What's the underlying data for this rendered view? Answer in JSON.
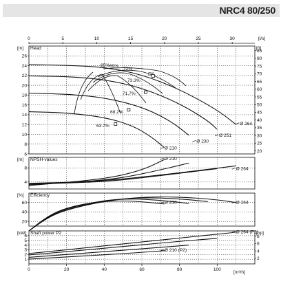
{
  "title": "NRC4 80/250",
  "top_axis": {
    "unit": "[l/s]",
    "ticks": [
      0,
      5,
      10,
      15,
      20,
      25,
      30
    ]
  },
  "bottom_axis": {
    "unit": "[m³/h]",
    "ticks": [
      0,
      20,
      40,
      60,
      80,
      100
    ]
  },
  "chart_data": [
    {
      "type": "line",
      "title": "Head",
      "ylabel": "[m]",
      "ylabel_right": "[ft]",
      "xlim": [
        0,
        120
      ],
      "ylim": [
        6,
        28
      ],
      "yticks": [
        6,
        8,
        10,
        12,
        14,
        16,
        18,
        20,
        22,
        24,
        26
      ],
      "yticks_right": [
        20,
        25,
        30,
        35,
        40,
        45,
        50,
        55,
        60,
        65,
        70,
        75,
        80,
        85
      ],
      "series": [
        {
          "name": "Ø 264",
          "points": [
            [
              0,
              24.2
            ],
            [
              20,
              24.1
            ],
            [
              40,
              23.7
            ],
            [
              60,
              22.2
            ],
            [
              80,
              19.2
            ],
            [
              100,
              15.0
            ],
            [
              110,
              12.0
            ]
          ]
        },
        {
          "name": "Ø 251",
          "points": [
            [
              0,
              21.9
            ],
            [
              20,
              21.8
            ],
            [
              40,
              21.2
            ],
            [
              60,
              19.5
            ],
            [
              80,
              16.3
            ],
            [
              95,
              12.8
            ],
            [
              100,
              11.0
            ]
          ]
        },
        {
          "name": "Ø 230",
          "points": [
            [
              0,
              18.4
            ],
            [
              20,
              18.2
            ],
            [
              40,
              17.5
            ],
            [
              60,
              15.6
            ],
            [
              75,
              12.8
            ],
            [
              85,
              9.8
            ]
          ]
        },
        {
          "name": "Ø 210",
          "points": [
            [
              0,
              14.6
            ],
            [
              20,
              14.4
            ],
            [
              40,
              13.5
            ],
            [
              55,
              11.8
            ],
            [
              65,
              9.5
            ],
            [
              72,
              7.3
            ]
          ]
        }
      ],
      "series_labels": [
        "Ø 264",
        "Ø 251",
        "Ø 230",
        "Ø 210"
      ],
      "efficiency_labels": [
        "65%",
        "69%",
        "72%",
        "73.3%",
        "Eff.",
        "71.7%",
        "68.2%",
        "63.7%"
      ],
      "best_efficiency_points": [
        [
          66,
          21.9
        ],
        [
          62,
          18.6
        ],
        [
          53,
          15.0
        ],
        [
          46,
          12.1
        ]
      ]
    },
    {
      "type": "line",
      "title": "NPSH-values",
      "ylabel": "[m]",
      "ylim": [
        2,
        11
      ],
      "yticks": [
        4,
        8
      ],
      "series": [
        {
          "name": "Ø 264",
          "points": [
            [
              0,
              3.6
            ],
            [
              40,
              4.2
            ],
            [
              80,
              6.6
            ],
            [
              110,
              8.6
            ]
          ]
        },
        {
          "name": "Ø 251",
          "points": [
            [
              0,
              3.4
            ],
            [
              40,
              4.0
            ],
            [
              70,
              5.8
            ],
            [
              100,
              7.8
            ]
          ]
        },
        {
          "name": "Ø 230",
          "points": [
            [
              0,
              3.2
            ],
            [
              40,
              4.4
            ],
            [
              60,
              6.2
            ],
            [
              85,
              9.4
            ]
          ]
        },
        {
          "name": "Ø 210",
          "points": [
            [
              0,
              3.0
            ],
            [
              40,
              4.8
            ],
            [
              60,
              7.3
            ],
            [
              72,
              10.4
            ]
          ]
        }
      ],
      "series_labels": [
        "Ø 210",
        "Ø 264"
      ]
    },
    {
      "type": "line",
      "title": "Efficiency",
      "ylabel": "[%]",
      "ylim": [
        10,
        80
      ],
      "yticks": [
        20,
        40,
        60
      ],
      "series": [
        {
          "name": "Ø 264",
          "points": [
            [
              0,
              0
            ],
            [
              10,
              28
            ],
            [
              20,
              45
            ],
            [
              40,
              63
            ],
            [
              60,
              72
            ],
            [
              80,
              72
            ],
            [
              100,
              66
            ],
            [
              110,
              60
            ]
          ]
        },
        {
          "name": "Ø 251",
          "points": [
            [
              0,
              0
            ],
            [
              10,
              29
            ],
            [
              20,
              46
            ],
            [
              40,
              64
            ],
            [
              60,
              71
            ],
            [
              80,
              68
            ],
            [
              95,
              62
            ]
          ]
        },
        {
          "name": "Ø 230",
          "points": [
            [
              0,
              0
            ],
            [
              10,
              30
            ],
            [
              20,
              48
            ],
            [
              40,
              65
            ],
            [
              55,
              68
            ],
            [
              70,
              65
            ],
            [
              85,
              58
            ]
          ]
        },
        {
          "name": "Ø 210",
          "points": [
            [
              0,
              0
            ],
            [
              10,
              31
            ],
            [
              20,
              49
            ],
            [
              35,
              61
            ],
            [
              50,
              64
            ],
            [
              62,
              61
            ],
            [
              72,
              57
            ]
          ]
        }
      ],
      "series_labels": [
        "Ø 210",
        "Ø 264"
      ]
    },
    {
      "type": "line",
      "title": "Shaft power P2",
      "ylabel": "[kW]",
      "ylabel_right": "[hp]",
      "ylim": [
        0,
        7
      ],
      "yticks": [
        1,
        2,
        3,
        4,
        5,
        6
      ],
      "yticks_right": [
        2,
        4,
        6,
        8
      ],
      "series": [
        {
          "name": "Ø 264 (P2)",
          "points": [
            [
              0,
              2.2
            ],
            [
              40,
              3.8
            ],
            [
              80,
              5.5
            ],
            [
              110,
              6.7
            ]
          ]
        },
        {
          "name": "Ø 251",
          "points": [
            [
              0,
              1.9
            ],
            [
              40,
              3.3
            ],
            [
              80,
              4.8
            ],
            [
              100,
              5.4
            ]
          ]
        },
        {
          "name": "Ø 230",
          "points": [
            [
              0,
              1.4
            ],
            [
              40,
              2.6
            ],
            [
              70,
              3.5
            ],
            [
              85,
              4.0
            ]
          ]
        },
        {
          "name": "Ø 210 (P2)",
          "points": [
            [
              0,
              1.0
            ],
            [
              30,
              1.7
            ],
            [
              55,
              2.3
            ],
            [
              72,
              2.8
            ]
          ]
        }
      ],
      "series_labels": [
        "Ø 264 (P2)",
        "Ø 210 (P2)"
      ]
    }
  ]
}
